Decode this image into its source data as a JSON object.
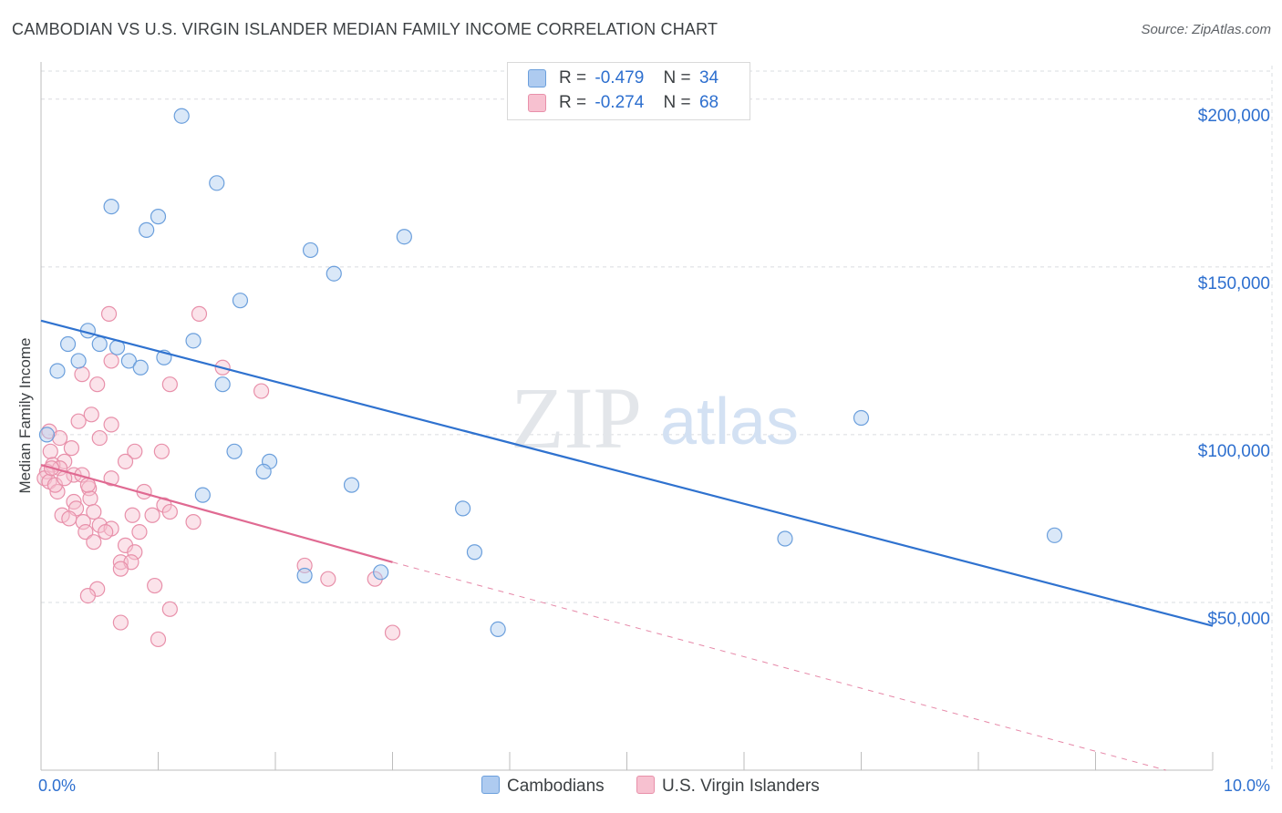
{
  "title": "CAMBODIAN VS U.S. VIRGIN ISLANDER MEDIAN FAMILY INCOME CORRELATION CHART",
  "source": "Source: ZipAtlas.com",
  "watermark": {
    "zip": "ZIP",
    "atlas": "atlas"
  },
  "legend_top": {
    "rows": [
      {
        "r_label": "R =",
        "r_value": "-0.479",
        "n_label": "N =",
        "n_value": "34"
      },
      {
        "r_label": "R =",
        "r_value": "-0.274",
        "n_label": "N =",
        "n_value": "68"
      }
    ]
  },
  "legend_bottom": {
    "items": [
      "Cambodians",
      "U.S. Virgin Islanders"
    ]
  },
  "colors": {
    "blue_fill": "#aecbf0",
    "blue_stroke": "#6b9fdc",
    "blue_line": "#2f72cf",
    "pink_fill": "#f7c1d0",
    "pink_stroke": "#e890aa",
    "pink_line": "#e06a92",
    "axis_text": "#2d6fcf",
    "grid": "#dadce0"
  },
  "chart_data": {
    "type": "scatter",
    "title": "CAMBODIAN VS U.S. VIRGIN ISLANDER MEDIAN FAMILY INCOME CORRELATION CHART",
    "xlabel": "",
    "ylabel": "Median Family Income",
    "xlim": [
      0,
      10
    ],
    "ylim": [
      0,
      210000
    ],
    "x_tick_labels": [
      "0.0%",
      "10.0%"
    ],
    "y_ticks": [
      50000,
      100000,
      150000,
      200000
    ],
    "y_tick_labels": [
      "$50,000",
      "$100,000",
      "$150,000",
      "$200,000"
    ],
    "series": [
      {
        "name": "Cambodians",
        "trend": {
          "x0": 0,
          "y0": 134000,
          "x1": 10,
          "y1": 43000
        },
        "points": [
          [
            1.2,
            195000
          ],
          [
            1.5,
            175000
          ],
          [
            0.6,
            168000
          ],
          [
            1.0,
            165000
          ],
          [
            0.9,
            161000
          ],
          [
            3.1,
            159000
          ],
          [
            2.3,
            155000
          ],
          [
            2.5,
            148000
          ],
          [
            1.7,
            140000
          ],
          [
            0.4,
            131000
          ],
          [
            0.23,
            127000
          ],
          [
            0.5,
            127000
          ],
          [
            1.3,
            128000
          ],
          [
            0.65,
            126000
          ],
          [
            0.32,
            122000
          ],
          [
            1.05,
            123000
          ],
          [
            0.75,
            122000
          ],
          [
            0.85,
            120000
          ],
          [
            0.14,
            119000
          ],
          [
            1.55,
            115000
          ],
          [
            7.0,
            105000
          ],
          [
            1.65,
            95000
          ],
          [
            1.95,
            92000
          ],
          [
            1.9,
            89000
          ],
          [
            2.65,
            85000
          ],
          [
            1.38,
            82000
          ],
          [
            3.6,
            78000
          ],
          [
            8.65,
            70000
          ],
          [
            6.35,
            69000
          ],
          [
            3.7,
            65000
          ],
          [
            2.25,
            58000
          ],
          [
            2.9,
            59000
          ],
          [
            3.9,
            42000
          ],
          [
            0.05,
            100000
          ]
        ]
      },
      {
        "name": "U.S. Virgin Islanders",
        "trend": {
          "x0": 0,
          "y0": 91000,
          "x1": 3.0,
          "y1": 62000,
          "dashed_to_x": 9.6,
          "dashed_to_y": 0
        },
        "points": [
          [
            0.58,
            136000
          ],
          [
            1.35,
            136000
          ],
          [
            0.6,
            122000
          ],
          [
            1.55,
            120000
          ],
          [
            0.35,
            118000
          ],
          [
            0.48,
            115000
          ],
          [
            1.1,
            115000
          ],
          [
            1.88,
            113000
          ],
          [
            0.43,
            106000
          ],
          [
            0.32,
            104000
          ],
          [
            0.6,
            103000
          ],
          [
            0.07,
            101000
          ],
          [
            0.16,
            99000
          ],
          [
            0.5,
            99000
          ],
          [
            0.8,
            95000
          ],
          [
            1.03,
            95000
          ],
          [
            0.08,
            95000
          ],
          [
            0.2,
            92000
          ],
          [
            0.72,
            92000
          ],
          [
            0.1,
            91000
          ],
          [
            0.16,
            90000
          ],
          [
            0.05,
            89000
          ],
          [
            0.28,
            88000
          ],
          [
            0.35,
            88000
          ],
          [
            0.6,
            87000
          ],
          [
            0.03,
            87000
          ],
          [
            0.07,
            86000
          ],
          [
            0.41,
            84000
          ],
          [
            0.14,
            83000
          ],
          [
            0.88,
            83000
          ],
          [
            0.42,
            81000
          ],
          [
            0.28,
            80000
          ],
          [
            1.05,
            79000
          ],
          [
            0.3,
            78000
          ],
          [
            0.45,
            77000
          ],
          [
            0.18,
            76000
          ],
          [
            0.78,
            76000
          ],
          [
            0.95,
            76000
          ],
          [
            1.1,
            77000
          ],
          [
            0.36,
            74000
          ],
          [
            0.24,
            75000
          ],
          [
            1.3,
            74000
          ],
          [
            0.5,
            73000
          ],
          [
            0.6,
            72000
          ],
          [
            0.38,
            71000
          ],
          [
            0.84,
            71000
          ],
          [
            0.55,
            71000
          ],
          [
            0.45,
            68000
          ],
          [
            0.72,
            67000
          ],
          [
            0.8,
            65000
          ],
          [
            0.68,
            62000
          ],
          [
            0.77,
            62000
          ],
          [
            0.68,
            60000
          ],
          [
            2.25,
            61000
          ],
          [
            2.45,
            57000
          ],
          [
            2.85,
            57000
          ],
          [
            0.48,
            54000
          ],
          [
            0.97,
            55000
          ],
          [
            0.4,
            52000
          ],
          [
            1.1,
            48000
          ],
          [
            0.68,
            44000
          ],
          [
            3.0,
            41000
          ],
          [
            1.0,
            39000
          ],
          [
            0.12,
            85000
          ],
          [
            0.2,
            87000
          ],
          [
            0.09,
            90000
          ],
          [
            0.26,
            96000
          ],
          [
            0.4,
            85000
          ]
        ]
      }
    ]
  }
}
